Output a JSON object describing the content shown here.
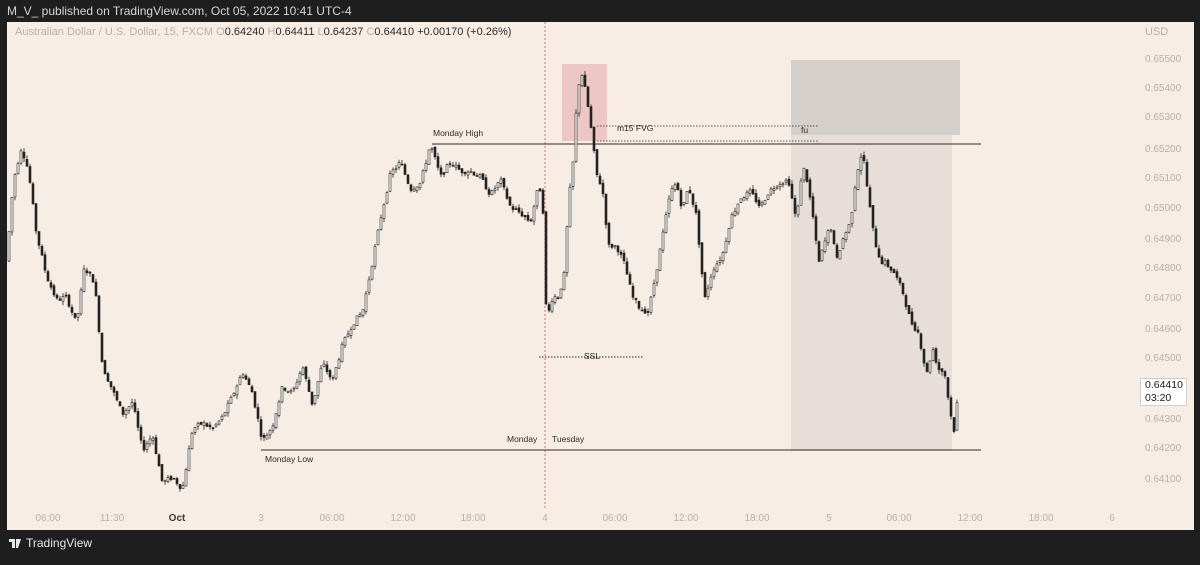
{
  "header": {
    "text": "M_V_ published on TradingView.com, Oct 05, 2022 10:41 UTC-4"
  },
  "footer": {
    "brand": "TradingView",
    "logo_icon": "tradingview-logo-icon"
  },
  "legend": {
    "symbol": "Australian Dollar / U.S. Dollar, 15, FXCM",
    "o_label": "O",
    "o": "0.64240",
    "h_label": "H",
    "h": "0.64411",
    "l_label": "L",
    "l": "0.64237",
    "c_label": "C",
    "c": "0.64410",
    "change": "+0.00170 (+0.26%)"
  },
  "last_price": {
    "value": "0.64410",
    "countdown": "03:20"
  },
  "annotations": {
    "monday_high": "Monday High",
    "monday_low": "Monday Low",
    "m15_fvg": "m15 FVG",
    "fu": "fu",
    "ssl": "SSL",
    "monday": "Monday",
    "tuesday": "Tuesday"
  },
  "colors": {
    "background": "#f8ede4",
    "candle_up": "#ffffff",
    "candle_down": "#222222",
    "fvg_zone": "#e8b6b6",
    "session_separator": "#e06a6a",
    "range_box": "#c8c4c2"
  },
  "chart_data": {
    "type": "candlestick",
    "title": "Australian Dollar / U.S. Dollar, 15, FXCM",
    "currency": "USD",
    "ylim": [
      0.6404,
      0.6556
    ],
    "y_ticks": [
      "0.65500",
      "0.65400",
      "0.65300",
      "0.65200",
      "0.65100",
      "0.65000",
      "0.64900",
      "0.64800",
      "0.64700",
      "0.64600",
      "0.64500",
      "0.64300",
      "0.64200",
      "0.64100"
    ],
    "x_ticks": [
      "06:00",
      "11:30",
      "Oct",
      "3",
      "06:00",
      "12:00",
      "18:00",
      "4",
      "06:00",
      "12:00",
      "18:00",
      "5",
      "06:00",
      "12:00",
      "18:00",
      "6"
    ],
    "levels": {
      "monday_high": 0.6522,
      "monday_low": 0.642,
      "ssl": 0.6451
    },
    "fvg": [
      0.6523,
      0.6528
    ],
    "trend_points": [
      [
        0,
        0.6483
      ],
      [
        7,
        0.651
      ],
      [
        15,
        0.6521
      ],
      [
        22,
        0.6513
      ],
      [
        30,
        0.6492
      ],
      [
        40,
        0.6478
      ],
      [
        50,
        0.647
      ],
      [
        60,
        0.6471
      ],
      [
        70,
        0.6462
      ],
      [
        78,
        0.6481
      ],
      [
        88,
        0.6476
      ],
      [
        96,
        0.6448
      ],
      [
        106,
        0.644
      ],
      [
        116,
        0.6432
      ],
      [
        126,
        0.6436
      ],
      [
        136,
        0.642
      ],
      [
        146,
        0.6425
      ],
      [
        156,
        0.6409
      ],
      [
        166,
        0.6411
      ],
      [
        176,
        0.6407
      ],
      [
        186,
        0.6427
      ],
      [
        196,
        0.6429
      ],
      [
        206,
        0.6427
      ],
      [
        216,
        0.6431
      ],
      [
        226,
        0.6438
      ],
      [
        236,
        0.6446
      ],
      [
        246,
        0.6439
      ],
      [
        256,
        0.6423
      ],
      [
        266,
        0.6428
      ],
      [
        276,
        0.6441
      ],
      [
        286,
        0.6439
      ],
      [
        296,
        0.6448
      ],
      [
        306,
        0.6435
      ],
      [
        316,
        0.6449
      ],
      [
        326,
        0.6443
      ],
      [
        336,
        0.6455
      ],
      [
        346,
        0.6462
      ],
      [
        356,
        0.6466
      ],
      [
        366,
        0.6483
      ],
      [
        374,
        0.6497
      ],
      [
        384,
        0.6512
      ],
      [
        394,
        0.6516
      ],
      [
        404,
        0.6507
      ],
      [
        414,
        0.6509
      ],
      [
        424,
        0.6522
      ],
      [
        434,
        0.6511
      ],
      [
        444,
        0.6516
      ],
      [
        454,
        0.6513
      ],
      [
        464,
        0.6513
      ],
      [
        474,
        0.6511
      ],
      [
        484,
        0.6505
      ],
      [
        494,
        0.651
      ],
      [
        504,
        0.6501
      ],
      [
        514,
        0.6499
      ],
      [
        524,
        0.6496
      ],
      [
        532,
        0.6508
      ],
      [
        536,
        0.6505
      ],
      [
        540,
        0.6463
      ],
      [
        546,
        0.6471
      ],
      [
        552,
        0.6471
      ],
      [
        558,
        0.6479
      ],
      [
        562,
        0.6503
      ],
      [
        566,
        0.6513
      ],
      [
        571,
        0.654
      ],
      [
        575,
        0.6546
      ],
      [
        580,
        0.6538
      ],
      [
        585,
        0.6526
      ],
      [
        590,
        0.6512
      ],
      [
        596,
        0.6507
      ],
      [
        602,
        0.6488
      ],
      [
        610,
        0.6488
      ],
      [
        618,
        0.6482
      ],
      [
        626,
        0.6471
      ],
      [
        634,
        0.6467
      ],
      [
        642,
        0.6466
      ],
      [
        650,
        0.648
      ],
      [
        658,
        0.6495
      ],
      [
        664,
        0.6506
      ],
      [
        670,
        0.6509
      ],
      [
        676,
        0.65
      ],
      [
        682,
        0.6508
      ],
      [
        690,
        0.6498
      ],
      [
        698,
        0.647
      ],
      [
        706,
        0.648
      ],
      [
        716,
        0.6485
      ],
      [
        724,
        0.6497
      ],
      [
        734,
        0.6504
      ],
      [
        744,
        0.6506
      ],
      [
        754,
        0.6501
      ],
      [
        762,
        0.6506
      ],
      [
        772,
        0.6509
      ],
      [
        782,
        0.651
      ],
      [
        790,
        0.6496
      ],
      [
        796,
        0.6515
      ],
      [
        800,
        0.6511
      ],
      [
        806,
        0.6499
      ],
      [
        812,
        0.6482
      ],
      [
        818,
        0.6489
      ],
      [
        824,
        0.6495
      ],
      [
        830,
        0.6483
      ],
      [
        836,
        0.649
      ],
      [
        844,
        0.6496
      ],
      [
        850,
        0.6512
      ],
      [
        856,
        0.652
      ],
      [
        862,
        0.6504
      ],
      [
        868,
        0.649
      ],
      [
        874,
        0.6483
      ],
      [
        880,
        0.6482
      ],
      [
        888,
        0.6479
      ],
      [
        896,
        0.6473
      ],
      [
        904,
        0.6463
      ],
      [
        912,
        0.6459
      ],
      [
        920,
        0.6445
      ],
      [
        926,
        0.6454
      ],
      [
        932,
        0.6447
      ],
      [
        938,
        0.6446
      ],
      [
        944,
        0.6432
      ],
      [
        948,
        0.6426
      ],
      [
        952,
        0.6441
      ]
    ]
  }
}
